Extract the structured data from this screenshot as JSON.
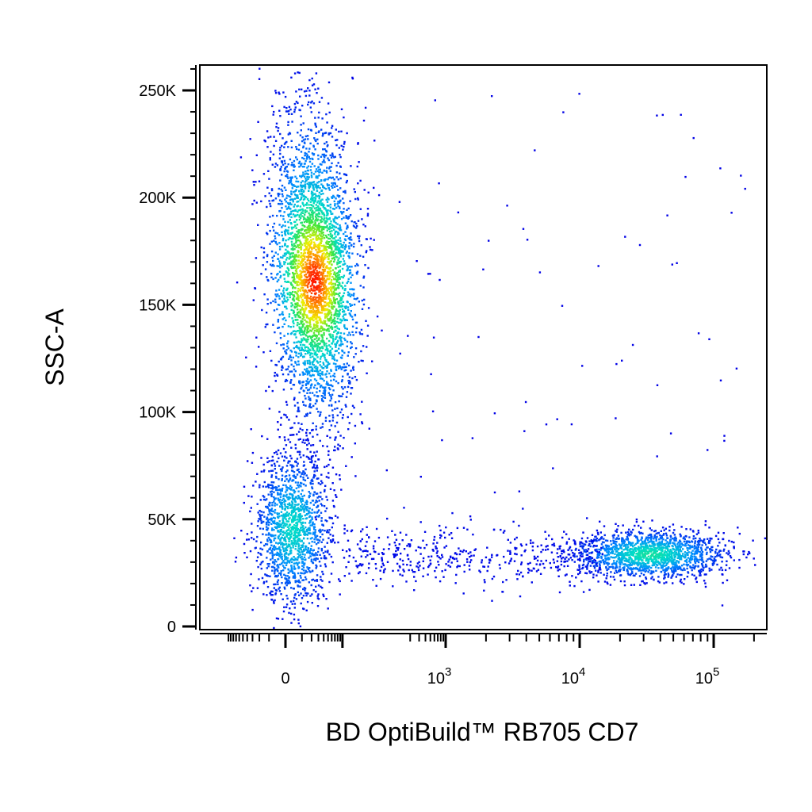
{
  "chart_data": {
    "type": "scatter",
    "title": "",
    "xlabel": "BD OptiBuild™ RB705 CD7",
    "ylabel": "SSC-A",
    "x_scale": "biexponential",
    "y_scale": "linear",
    "ylim": [
      0,
      262144
    ],
    "y_ticks": [
      {
        "value": 0,
        "label": "0"
      },
      {
        "value": 50000,
        "label": "50K"
      },
      {
        "value": 100000,
        "label": "100K"
      },
      {
        "value": 150000,
        "label": "150K"
      },
      {
        "value": 200000,
        "label": "200K"
      },
      {
        "value": 250000,
        "label": "250K"
      }
    ],
    "x_ticks": [
      {
        "value": 0,
        "base": "0",
        "exp": ""
      },
      {
        "value": 1000,
        "base": "10",
        "exp": "3"
      },
      {
        "value": 10000,
        "base": "10",
        "exp": "4"
      },
      {
        "value": 100000,
        "base": "10",
        "exp": "5"
      }
    ],
    "coloring": "density (blue → cyan → green → yellow → red)",
    "populations": [
      {
        "name": "CD7-negative, high SSC",
        "x_center": 50,
        "ssc_center": 160000,
        "ssc_range": [
          100000,
          255000
        ],
        "density": "highest"
      },
      {
        "name": "CD7-negative, low SSC",
        "x_center": 0,
        "ssc_center": 45000,
        "ssc_range": [
          22000,
          100000
        ],
        "density": "medium"
      },
      {
        "name": "CD7-positive, low SSC",
        "x_center": 30000,
        "ssc_center": 35000,
        "ssc_range": [
          20000,
          50000
        ],
        "density": "medium"
      }
    ],
    "grid": false,
    "legend": "none"
  }
}
